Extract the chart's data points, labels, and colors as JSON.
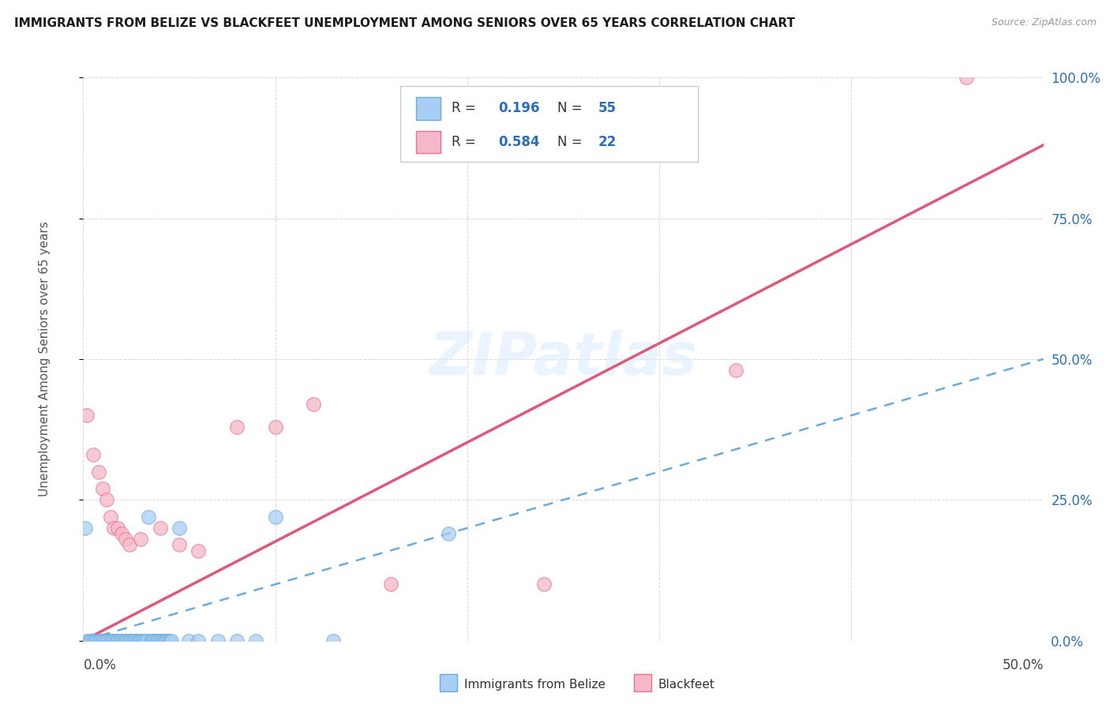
{
  "title": "IMMIGRANTS FROM BELIZE VS BLACKFEET UNEMPLOYMENT AMONG SENIORS OVER 65 YEARS CORRELATION CHART",
  "source": "Source: ZipAtlas.com",
  "ylabel": "Unemployment Among Seniors over 65 years",
  "xlim": [
    0.0,
    0.5
  ],
  "ylim": [
    0.0,
    1.0
  ],
  "watermark": "ZIPatlas",
  "legend_belize_label": "Immigrants from Belize",
  "legend_blackfeet_label": "Blackfeet",
  "belize_R": "0.196",
  "belize_N": "55",
  "blackfeet_R": "0.584",
  "blackfeet_N": "22",
  "belize_color": "#a8cef5",
  "blackfeet_color": "#f5b8c8",
  "belize_edge_color": "#6aabde",
  "blackfeet_edge_color": "#e87090",
  "belize_line_color": "#6aabde",
  "blackfeet_line_color": "#e05878",
  "text_blue": "#2a6ebb",
  "right_tick_color": "#2a6ebb",
  "grid_color": "#d8d8d8",
  "belize_points": [
    [
      0.001,
      0.2
    ],
    [
      0.002,
      0.0
    ],
    [
      0.003,
      0.0
    ],
    [
      0.004,
      0.0
    ],
    [
      0.005,
      0.0
    ],
    [
      0.006,
      0.0
    ],
    [
      0.007,
      0.0
    ],
    [
      0.008,
      0.0
    ],
    [
      0.009,
      0.0
    ],
    [
      0.01,
      0.0
    ],
    [
      0.011,
      0.0
    ],
    [
      0.012,
      0.0
    ],
    [
      0.013,
      0.0
    ],
    [
      0.014,
      0.0
    ],
    [
      0.015,
      0.0
    ],
    [
      0.016,
      0.0
    ],
    [
      0.017,
      0.0
    ],
    [
      0.018,
      0.0
    ],
    [
      0.019,
      0.0
    ],
    [
      0.02,
      0.0
    ],
    [
      0.021,
      0.0
    ],
    [
      0.022,
      0.0
    ],
    [
      0.023,
      0.0
    ],
    [
      0.024,
      0.0
    ],
    [
      0.025,
      0.0
    ],
    [
      0.026,
      0.0
    ],
    [
      0.027,
      0.0
    ],
    [
      0.028,
      0.0
    ],
    [
      0.029,
      0.0
    ],
    [
      0.03,
      0.0
    ],
    [
      0.031,
      0.0
    ],
    [
      0.032,
      0.0
    ],
    [
      0.033,
      0.0
    ],
    [
      0.034,
      0.22
    ],
    [
      0.035,
      0.0
    ],
    [
      0.036,
      0.0
    ],
    [
      0.037,
      0.0
    ],
    [
      0.038,
      0.0
    ],
    [
      0.039,
      0.0
    ],
    [
      0.04,
      0.0
    ],
    [
      0.041,
      0.0
    ],
    [
      0.042,
      0.0
    ],
    [
      0.043,
      0.0
    ],
    [
      0.044,
      0.0
    ],
    [
      0.045,
      0.0
    ],
    [
      0.046,
      0.0
    ],
    [
      0.05,
      0.2
    ],
    [
      0.055,
      0.0
    ],
    [
      0.06,
      0.0
    ],
    [
      0.07,
      0.0
    ],
    [
      0.08,
      0.0
    ],
    [
      0.09,
      0.0
    ],
    [
      0.1,
      0.22
    ],
    [
      0.13,
      0.0
    ],
    [
      0.19,
      0.19
    ]
  ],
  "blackfeet_points": [
    [
      0.002,
      0.4
    ],
    [
      0.005,
      0.33
    ],
    [
      0.008,
      0.3
    ],
    [
      0.01,
      0.27
    ],
    [
      0.012,
      0.25
    ],
    [
      0.014,
      0.22
    ],
    [
      0.016,
      0.2
    ],
    [
      0.018,
      0.2
    ],
    [
      0.02,
      0.19
    ],
    [
      0.022,
      0.18
    ],
    [
      0.024,
      0.17
    ],
    [
      0.03,
      0.18
    ],
    [
      0.04,
      0.2
    ],
    [
      0.05,
      0.17
    ],
    [
      0.06,
      0.16
    ],
    [
      0.08,
      0.38
    ],
    [
      0.1,
      0.38
    ],
    [
      0.12,
      0.42
    ],
    [
      0.16,
      0.1
    ],
    [
      0.24,
      0.1
    ],
    [
      0.34,
      0.48
    ],
    [
      0.46,
      1.0
    ]
  ],
  "belize_trend": [
    0.0,
    0.0,
    0.5,
    0.5
  ],
  "blackfeet_trend": [
    0.0,
    0.0,
    0.5,
    0.88
  ]
}
